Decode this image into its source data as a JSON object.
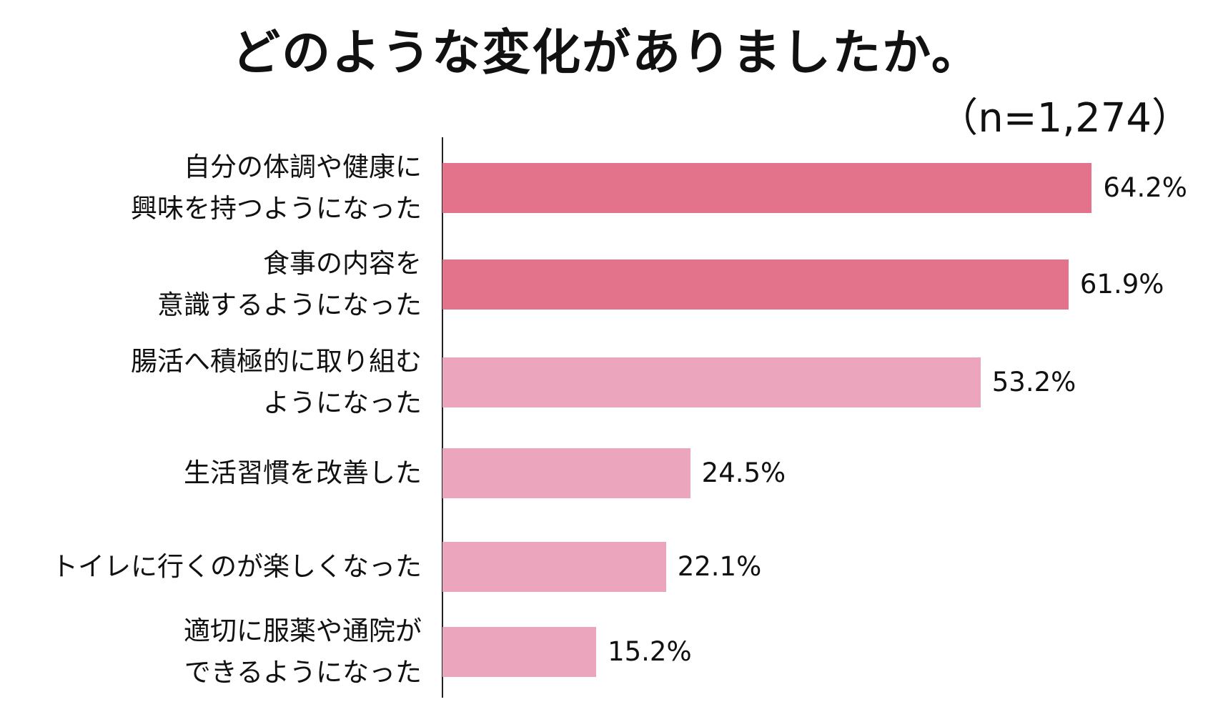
{
  "chart_data": {
    "type": "bar",
    "orientation": "horizontal",
    "title": "どのような変化がありましたか。",
    "sample_size": "（n=1,274）",
    "categories": [
      "自分の体調や健康に\n興味を持つようになった",
      "食事の内容を\n意識するようになった",
      "腸活へ積極的に取り組む\nようになった",
      "生活習慣を改善した",
      "トイレに行くのが楽しくなった",
      "適切に服薬や通院が\nできるようになった"
    ],
    "values": [
      64.2,
      61.9,
      53.2,
      24.5,
      22.1,
      15.2
    ],
    "value_labels": [
      "64.2%",
      "61.9%",
      "53.2%",
      "24.5%",
      "22.1%",
      "15.2%"
    ],
    "bar_colors": [
      "#e3738b",
      "#e3738b",
      "#eba6bd",
      "#eba6bd",
      "#eba6bd",
      "#eba6bd"
    ],
    "xlim": [
      0,
      100
    ],
    "grid": false,
    "legend": "none"
  }
}
